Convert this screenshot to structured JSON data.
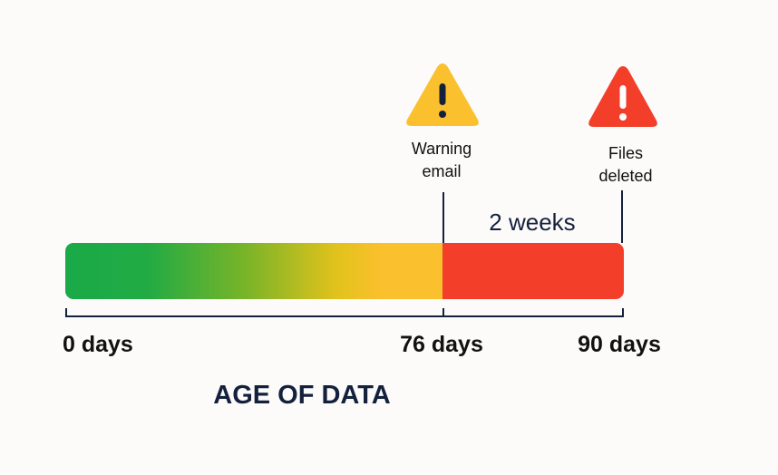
{
  "colors": {
    "green": "#1aaa48",
    "yellow": "#fbc02d",
    "red": "#f33f2a",
    "dark": "#14213d"
  },
  "markers": {
    "warning": {
      "icon": "warning-triangle-icon",
      "line1": "Warning",
      "line2": "email"
    },
    "deleted": {
      "icon": "alert-triangle-icon",
      "line1": "Files",
      "line2": "deleted"
    }
  },
  "span_label": "2 weeks",
  "axis": {
    "ticks": [
      "0 days",
      "76 days",
      "90 days"
    ],
    "title": "AGE OF DATA"
  }
}
